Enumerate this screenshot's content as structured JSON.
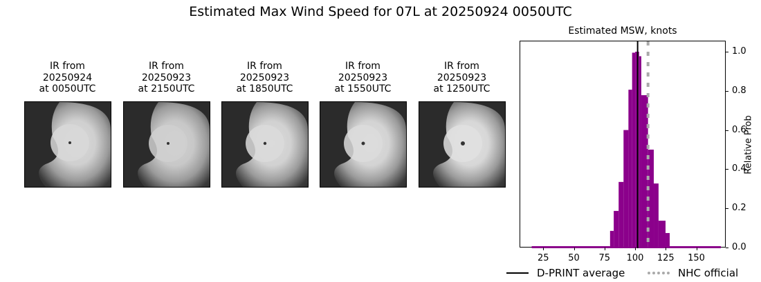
{
  "suptitle": "Estimated Max Wind Speed for 07L at 20250924 0050UTC",
  "panels": [
    {
      "title_l1": "IR from",
      "title_l2": "20250924",
      "title_l3": "at 0050UTC",
      "eye": [
        65,
        59
      ],
      "eye_r": 2.0,
      "cloud_gray": "#d8d8d8"
    },
    {
      "title_l1": "IR from",
      "title_l2": "20250923",
      "title_l3": "at 2150UTC",
      "eye": [
        64,
        60
      ],
      "eye_r": 2.0,
      "cloud_gray": "#d0d0d0"
    },
    {
      "title_l1": "IR from",
      "title_l2": "20250923",
      "title_l3": "at 1850UTC",
      "eye": [
        62,
        60
      ],
      "eye_r": 2.2,
      "cloud_gray": "#dadada"
    },
    {
      "title_l1": "IR from",
      "title_l2": "20250923",
      "title_l3": "at 1550UTC",
      "eye": [
        62,
        60
      ],
      "eye_r": 2.5,
      "cloud_gray": "#dcdcdc"
    },
    {
      "title_l1": "IR from",
      "title_l2": "20250923",
      "title_l3": "at 1250UTC",
      "eye": [
        63,
        60
      ],
      "eye_r": 3.0,
      "cloud_gray": "#e0e0e0"
    }
  ],
  "chart_data": {
    "type": "bar",
    "title": "Estimated MSW, knots",
    "xlabel": "",
    "ylabel": "Relative Prob",
    "xlim": [
      5.6,
      174
    ],
    "ylim": [
      0.0,
      1.05
    ],
    "xticks": [
      25,
      50,
      75,
      100,
      125,
      150
    ],
    "yticks": [
      0.0,
      0.2,
      0.4,
      0.6,
      0.8,
      1.0
    ],
    "ytick_labels": [
      "0.0",
      "0.2",
      "0.4",
      "0.6",
      "0.8",
      "1.0"
    ],
    "bar_color": "#8b008b",
    "bins": [
      {
        "x0": 15,
        "x1": 79,
        "value": 0.007
      },
      {
        "x0": 79,
        "x1": 82,
        "value": 0.085
      },
      {
        "x0": 82,
        "x1": 86,
        "value": 0.187
      },
      {
        "x0": 86,
        "x1": 90,
        "value": 0.335
      },
      {
        "x0": 90,
        "x1": 94,
        "value": 0.6
      },
      {
        "x0": 94,
        "x1": 97,
        "value": 0.806
      },
      {
        "x0": 97,
        "x1": 99.5,
        "value": 0.995
      },
      {
        "x0": 99.5,
        "x1": 102.7,
        "value": 1.0
      },
      {
        "x0": 102.7,
        "x1": 104.5,
        "value": 0.977
      },
      {
        "x0": 104.5,
        "x1": 110,
        "value": 0.778
      },
      {
        "x0": 110,
        "x1": 114.7,
        "value": 0.5
      },
      {
        "x0": 114.7,
        "x1": 118.6,
        "value": 0.327
      },
      {
        "x0": 118.6,
        "x1": 124.3,
        "value": 0.137
      },
      {
        "x0": 124.3,
        "x1": 127.7,
        "value": 0.074
      },
      {
        "x0": 127.7,
        "x1": 169.5,
        "value": 0.007
      }
    ],
    "lines": [
      {
        "name": "D-PRINT average",
        "x": 101.5,
        "style": "solid",
        "color": "#000000"
      },
      {
        "name": "NHC official",
        "x": 110,
        "style": "dotted",
        "color": "#aaaaaa"
      }
    ],
    "legend": {
      "position": "bottom",
      "entries": [
        "D-PRINT average",
        "NHC official"
      ]
    }
  }
}
